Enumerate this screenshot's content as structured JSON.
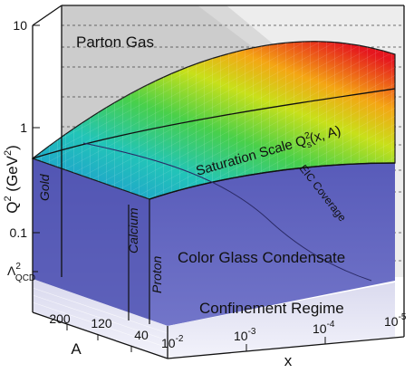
{
  "title": "",
  "y_axis": {
    "title_main": "Q",
    "title_sup": "2",
    "title_unit": " (GeV",
    "title_unit_sup": "2",
    "title_close": ")",
    "scale": "log",
    "tick_labels": [
      "10",
      "1",
      "0.1"
    ],
    "qcd_tick_main": "Λ",
    "qcd_tick_sup": "2",
    "qcd_tick_sub": "QCD"
  },
  "a_axis": {
    "title": "A",
    "tick_labels": [
      "200",
      "120",
      "40"
    ]
  },
  "x_axis": {
    "title": "x",
    "scale": "log",
    "tick_base": "10",
    "tick_exponents": [
      "-2",
      "-3",
      "-4",
      "-5"
    ]
  },
  "regions": {
    "parton_gas": "Parton Gas",
    "saturation_text": "Saturation Scale Q",
    "saturation_sup": "2",
    "saturation_sub": "s",
    "saturation_args": "(x, A)",
    "color_glass": "Color Glass Condensate",
    "confinement": "Confinement Regime",
    "eic_coverage": "EIC Coverage",
    "gold": "Gold",
    "calcium": "Calcium",
    "proton": "Proton"
  },
  "colors": {
    "cgc_blue": "#5c5fbe",
    "parton_gray": "#c9c9c9",
    "confinement_lavender": "#e3e3f4",
    "surface_high": "#e8121e",
    "surface_mid": "#f2e612",
    "surface_low": "#2ea8e0"
  }
}
